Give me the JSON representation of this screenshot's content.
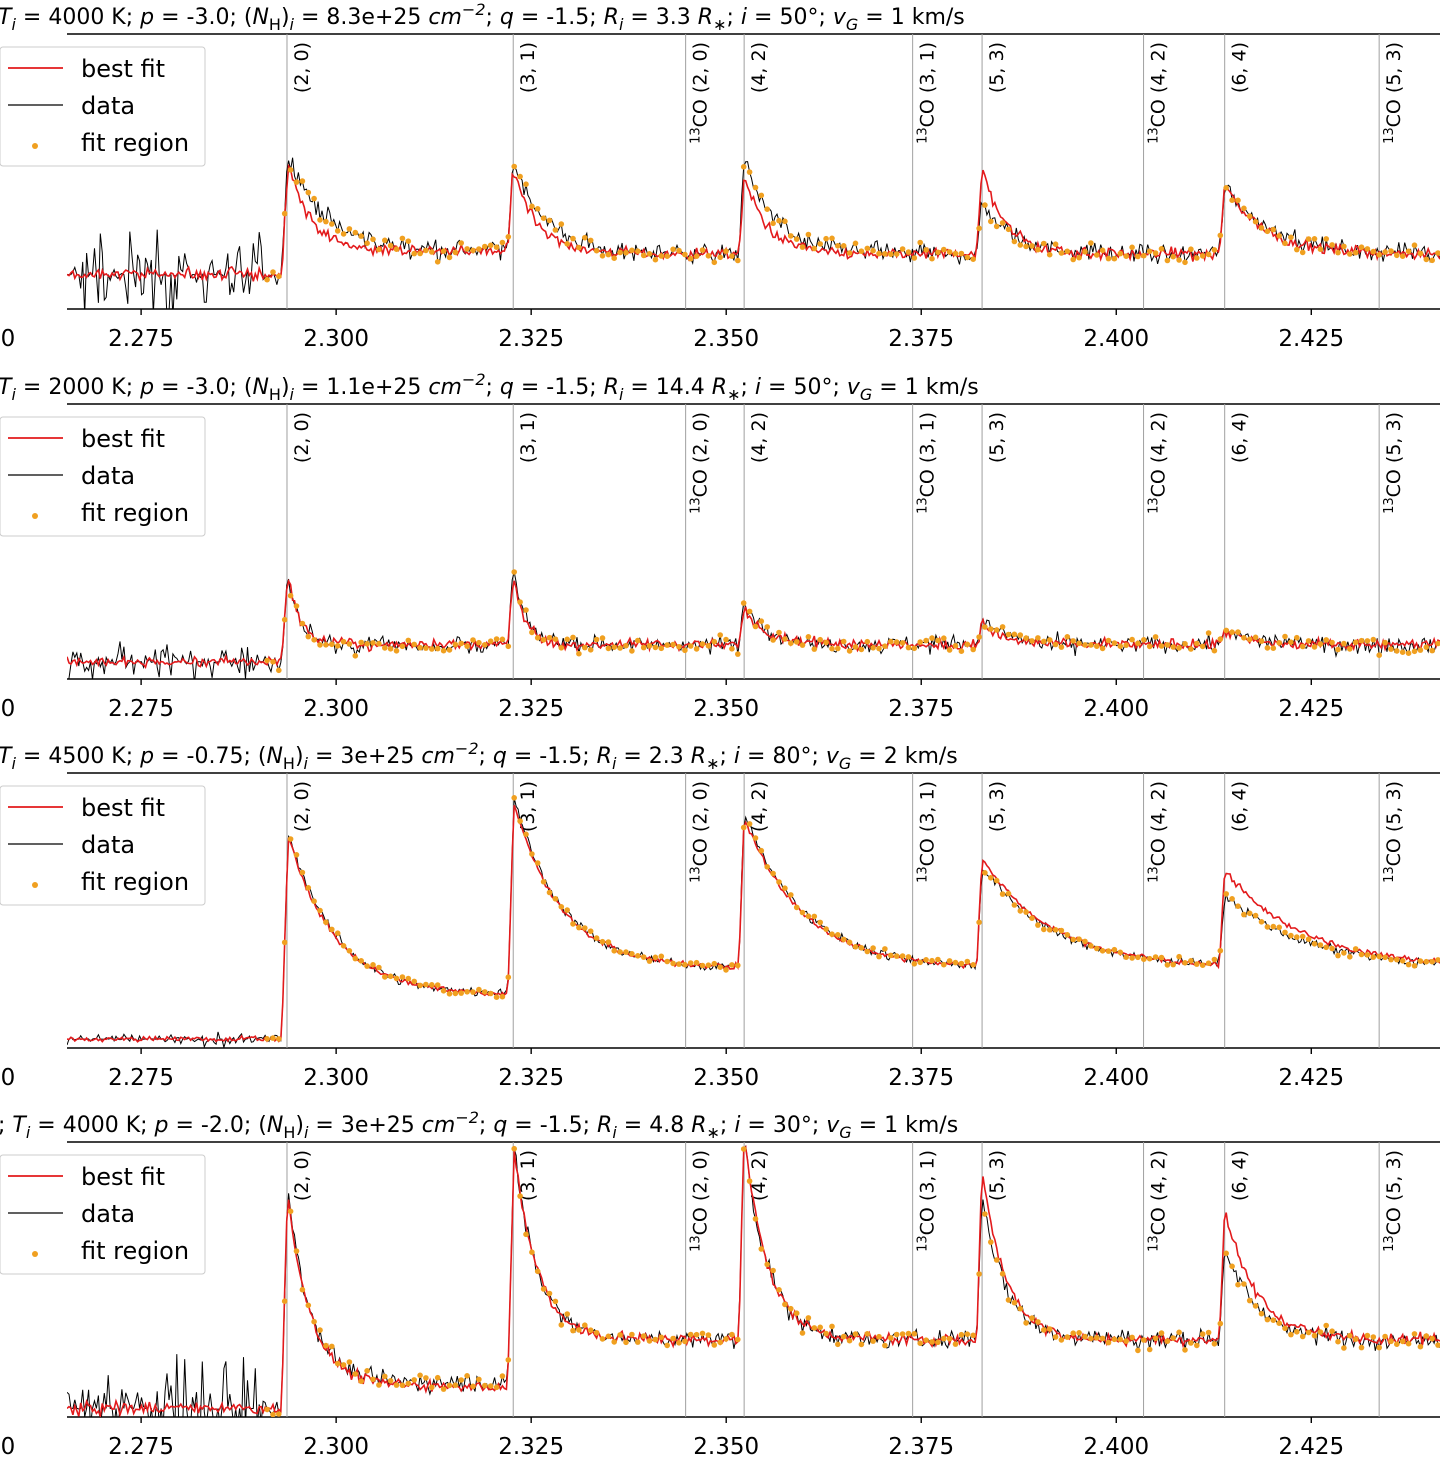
{
  "chart_data": {
    "type": "line",
    "layout": "4 vertically stacked panels sharing the same x axis",
    "xlim": [
      2.2655,
      2.4415
    ],
    "x_ticks": [
      "2.275",
      "2.300",
      "2.325",
      "2.350",
      "2.375",
      "2.400",
      "2.425"
    ],
    "x_tick_values": [
      2.275,
      2.3,
      2.325,
      2.35,
      2.375,
      2.4,
      2.425
    ],
    "left_cut_tick_label": "0",
    "legend": {
      "placement": "top-left",
      "entries": [
        {
          "label": "best fit",
          "marker": "line",
          "color": "#e31a1c"
        },
        {
          "label": "data",
          "marker": "line",
          "color": "#000000"
        },
        {
          "label": "fit region",
          "marker": "dot",
          "color": "#f0a020"
        }
      ]
    },
    "line_markers": [
      {
        "label": "(2, 0)",
        "x": 2.2937
      },
      {
        "label": "(3, 1)",
        "x": 2.3227
      },
      {
        "label": "¹³CO (2, 0)",
        "x": 2.3448
      },
      {
        "label": "(4, 2)",
        "x": 2.3523
      },
      {
        "label": "¹³CO (3, 1)",
        "x": 2.3739
      },
      {
        "label": "(5, 3)",
        "x": 2.3828
      },
      {
        "label": "¹³CO (4, 2)",
        "x": 2.4035
      },
      {
        "label": "(6, 4)",
        "x": 2.4139
      },
      {
        "label": "¹³CO (5, 3)",
        "x": 2.4337
      }
    ],
    "series_colors": {
      "best_fit": "#e31a1c",
      "data": "#000000",
      "fit_region": "#f0a020",
      "marker_lines": "#a0a0a0"
    },
    "panels": [
      {
        "title": "T_i = 4000 K; p = -3.0; (N_H)_i = 8.3e+25 cm^-2; q = -1.5; R_i = 3.3 R_*; i = 50°; v_G = 1 km/s",
        "title_parts": [
          "T",
          "i",
          " = 4000 K; ",
          "p",
          " = -3.0; (",
          "N",
          "H",
          ")",
          "i",
          " = 8.3e+25 ",
          "cm",
          "−2",
          "; ",
          "q",
          " = -1.5; ",
          "R",
          "i",
          " = 3.3 ",
          "R",
          "∗",
          "; ",
          "i",
          " = 50°; ",
          "v",
          "G",
          " = 1 km/s"
        ],
        "ylim": [
          0,
          1.6
        ],
        "noise": 0.06,
        "left_noise": 0.35,
        "series": [
          {
            "name": "best fit",
            "baseline": 0.2,
            "continuum": 0.32,
            "plateau": 0.34,
            "bands": [
              {
                "x0": 2.2937,
                "amp": 0.55,
                "decay": 0.0028,
                "tail": 0.0
              },
              {
                "x0": 2.3227,
                "amp": 0.5,
                "decay": 0.0032,
                "tail": 0.0
              },
              {
                "x0": 2.3523,
                "amp": 0.45,
                "decay": 0.003,
                "tail": 0.0
              },
              {
                "x0": 2.3828,
                "amp": 0.5,
                "decay": 0.003,
                "tail": 0.0
              },
              {
                "x0": 2.4139,
                "amp": 0.4,
                "decay": 0.005,
                "tail": 0.0
              }
            ]
          },
          {
            "name": "data",
            "baseline": 0.2,
            "continuum": 0.32,
            "plateau": 0.34,
            "bands": [
              {
                "x0": 2.2937,
                "amp": 0.6,
                "decay": 0.0045,
                "tail": 0.0
              },
              {
                "x0": 2.3227,
                "amp": 0.55,
                "decay": 0.004,
                "tail": 0.0
              },
              {
                "x0": 2.3523,
                "amp": 0.55,
                "decay": 0.004,
                "tail": 0.0
              },
              {
                "x0": 2.3828,
                "amp": 0.3,
                "decay": 0.004,
                "tail": 0.0
              },
              {
                "x0": 2.4139,
                "amp": 0.4,
                "decay": 0.006,
                "tail": 0.0
              }
            ]
          }
        ]
      },
      {
        "title": "T_i = 2000 K; p = -3.0; (N_H)_i = 1.1e+25 cm^-2; q = -1.5; R_i = 14.4 R_*; i = 50°; v_G = 1 km/s",
        "title_parts": [
          "T",
          "i",
          " = 2000 K; ",
          "p",
          " = -3.0; (",
          "N",
          "H",
          ")",
          "i",
          " = 1.1e+25 ",
          "cm",
          "−2",
          "; ",
          "q",
          " = -1.5; ",
          "R",
          "i",
          " = 14.4 ",
          "R",
          "∗",
          "; ",
          "i",
          " = 50°; ",
          "v",
          "G",
          " = 1 km/s"
        ],
        "ylim": [
          0,
          1.6
        ],
        "noise": 0.055,
        "left_noise": 0.18,
        "series": [
          {
            "name": "best fit",
            "baseline": 0.1,
            "continuum": 0.2,
            "plateau": 0.2,
            "bands": [
              {
                "x0": 2.2937,
                "amp": 0.45,
                "decay": 0.0015,
                "tail": 0.0
              },
              {
                "x0": 2.3227,
                "amp": 0.4,
                "decay": 0.0015,
                "tail": 0.0
              },
              {
                "x0": 2.3523,
                "amp": 0.2,
                "decay": 0.003,
                "tail": 0.0
              },
              {
                "x0": 2.3828,
                "amp": 0.12,
                "decay": 0.003,
                "tail": 0.0
              },
              {
                "x0": 2.4139,
                "amp": 0.08,
                "decay": 0.003,
                "tail": 0.0
              }
            ]
          },
          {
            "name": "data",
            "baseline": 0.1,
            "continuum": 0.2,
            "plateau": 0.2,
            "bands": [
              {
                "x0": 2.2937,
                "amp": 0.45,
                "decay": 0.0015,
                "tail": 0.0
              },
              {
                "x0": 2.3227,
                "amp": 0.45,
                "decay": 0.0015,
                "tail": 0.0
              },
              {
                "x0": 2.3523,
                "amp": 0.25,
                "decay": 0.003,
                "tail": 0.0
              },
              {
                "x0": 2.3828,
                "amp": 0.15,
                "decay": 0.003,
                "tail": 0.0
              },
              {
                "x0": 2.4139,
                "amp": 0.1,
                "decay": 0.003,
                "tail": 0.0
              }
            ]
          }
        ]
      },
      {
        "title": "T_i = 4500 K; p = -0.75; (N_H)_i = 3e+25 cm^-2; q = -1.5; R_i = 2.3 R_*; i = 80°; v_G = 2 km/s",
        "title_parts": [
          "T",
          "i",
          " = 4500 K; ",
          "p",
          " = -0.75; (",
          "N",
          "H",
          ")",
          "i",
          " = 3e+25 ",
          "cm",
          "−2",
          "; ",
          "q",
          " = -1.5; ",
          "R",
          "i",
          " = 2.3 ",
          "R",
          "∗",
          "; ",
          "i",
          " = 80°; ",
          "v",
          "G",
          " = 2 km/s"
        ],
        "ylim": [
          0,
          1.55
        ],
        "noise": 0.03,
        "left_noise": 0.05,
        "series": [
          {
            "name": "best fit",
            "baseline": 0.05,
            "continuum": 0.45,
            "plateau": 0.3,
            "bands": [
              {
                "x0": 2.2937,
                "amp": 0.92,
                "decay": 0.006,
                "tail": 0.0
              },
              {
                "x0": 2.3227,
                "amp": 0.95,
                "decay": 0.006,
                "tail": 0.0
              },
              {
                "x0": 2.3523,
                "amp": 0.85,
                "decay": 0.0075,
                "tail": 0.0
              },
              {
                "x0": 2.3828,
                "amp": 0.62,
                "decay": 0.009,
                "tail": 0.0
              },
              {
                "x0": 2.4139,
                "amp": 0.55,
                "decay": 0.01,
                "tail": 0.0
              }
            ]
          },
          {
            "name": "data",
            "baseline": 0.05,
            "continuum": 0.45,
            "plateau": 0.3,
            "bands": [
              {
                "x0": 2.2937,
                "amp": 0.95,
                "decay": 0.006,
                "tail": 0.0
              },
              {
                "x0": 2.3227,
                "amp": 0.98,
                "decay": 0.006,
                "tail": 0.0
              },
              {
                "x0": 2.3523,
                "amp": 0.88,
                "decay": 0.0075,
                "tail": 0.0
              },
              {
                "x0": 2.3828,
                "amp": 0.58,
                "decay": 0.009,
                "tail": 0.0
              },
              {
                "x0": 2.4139,
                "amp": 0.42,
                "decay": 0.01,
                "tail": 0.0
              }
            ]
          }
        ]
      },
      {
        "title": "; T_i = 4000 K; p = -2.0; (N_H)_i = 3e+25 cm^-2; q = -1.5; R_i = 4.8 R_*; i = 30°; v_G = 1 km/s",
        "title_parts": [
          "; ",
          "T",
          "i",
          " = 4000 K; ",
          "p",
          " = -2.0; (",
          "N",
          "H",
          ")",
          "i",
          " = 3e+25 ",
          "cm",
          "−2",
          "; ",
          "q",
          " = -1.5; ",
          "R",
          "i",
          " = 4.8 ",
          "R",
          "∗",
          "; ",
          "i",
          " = 30°; ",
          "v",
          "G",
          " = 1 km/s"
        ],
        "ylim": [
          0,
          1.6
        ],
        "noise": 0.06,
        "left_noise": 0.4,
        "series": [
          {
            "name": "best fit",
            "baseline": 0.05,
            "continuum": 0.45,
            "plateau": 0.18,
            "bands": [
              {
                "x0": 2.2937,
                "amp": 1.15,
                "decay": 0.003,
                "tail": 0.0
              },
              {
                "x0": 2.3227,
                "amp": 1.15,
                "decay": 0.003,
                "tail": 0.0
              },
              {
                "x0": 2.3523,
                "amp": 1.2,
                "decay": 0.003,
                "tail": 0.0
              },
              {
                "x0": 2.3828,
                "amp": 1.0,
                "decay": 0.003,
                "tail": 0.0
              },
              {
                "x0": 2.4139,
                "amp": 0.75,
                "decay": 0.004,
                "tail": 0.0
              }
            ]
          },
          {
            "name": "data",
            "baseline": 0.05,
            "continuum": 0.45,
            "plateau": 0.2,
            "bands": [
              {
                "x0": 2.2937,
                "amp": 1.15,
                "decay": 0.003,
                "tail": 0.0
              },
              {
                "x0": 2.3227,
                "amp": 1.15,
                "decay": 0.003,
                "tail": 0.0
              },
              {
                "x0": 2.3523,
                "amp": 1.2,
                "decay": 0.003,
                "tail": 0.0
              },
              {
                "x0": 2.3828,
                "amp": 0.85,
                "decay": 0.003,
                "tail": 0.0
              },
              {
                "x0": 2.4139,
                "amp": 0.55,
                "decay": 0.004,
                "tail": 0.0
              }
            ]
          }
        ]
      }
    ]
  }
}
